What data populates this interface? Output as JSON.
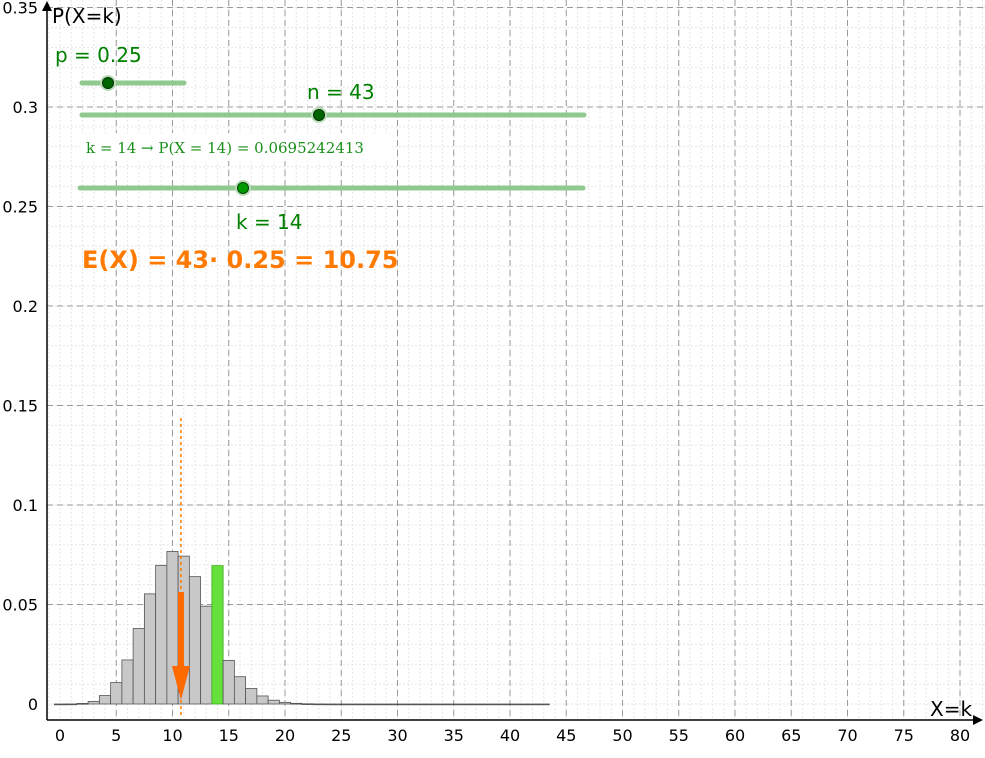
{
  "chart_data": {
    "type": "bar",
    "x_axis_label": "X=k",
    "y_axis_label": "P(X=k)",
    "xlim": [
      -1,
      82
    ],
    "ylim": [
      -0.008,
      0.35
    ],
    "x_ticks": [
      "0",
      "5",
      "10",
      "15",
      "20",
      "25",
      "30",
      "35",
      "40",
      "45",
      "50",
      "55",
      "60",
      "65",
      "70",
      "75",
      "80"
    ],
    "y_ticks": [
      "0",
      "0.05",
      "0.1",
      "0.15",
      "0.2",
      "0.25",
      "0.3",
      "0.35"
    ],
    "grid": true,
    "n": 43,
    "p": 0.25,
    "k": 14,
    "x": [
      0,
      1,
      2,
      3,
      4,
      5,
      6,
      7,
      8,
      9,
      10,
      11,
      12,
      13,
      14,
      15,
      16,
      17,
      18,
      19,
      20,
      21,
      22,
      23,
      24,
      25,
      26,
      27,
      28,
      29,
      30,
      31,
      32,
      33,
      34,
      35,
      36,
      37,
      38,
      39,
      40,
      41,
      42,
      43
    ],
    "values": [
      0.0,
      3e-05,
      0.00029,
      0.00131,
      0.00425,
      0.01077,
      0.02214,
      0.03795,
      0.05534,
      0.06968,
      0.07665,
      0.07432,
      0.064,
      0.04916,
      0.06952,
      0.02193,
      0.01371,
      0.0078,
      0.00404,
      0.00191,
      0.00083,
      0.00033,
      0.00012,
      4e-05,
      1e-05,
      0.0,
      0.0,
      0.0,
      0.0,
      0.0,
      0.0,
      0.0,
      0.0,
      0.0,
      0.0,
      0.0,
      0.0,
      0.0,
      0.0,
      0.0,
      0.0,
      0.0,
      0.0,
      0.0
    ],
    "highlight_k": 14,
    "expected_value": 10.75,
    "colors": {
      "bar": "#c8c8c8",
      "highlight": "#66e03a",
      "slider": "#008000",
      "expectation": "#ff7a00"
    }
  },
  "sliders": {
    "p_label": "p = 0.25",
    "p_value": 0.25,
    "n_label": "n = 43",
    "n_value": 43,
    "k_label": "k = 14",
    "k_value": 14
  },
  "texts": {
    "probability": "k = 14 → P(X = 14) = 0.0695242413",
    "expectation": "E(X) = 43· 0.25 = 10.75"
  }
}
